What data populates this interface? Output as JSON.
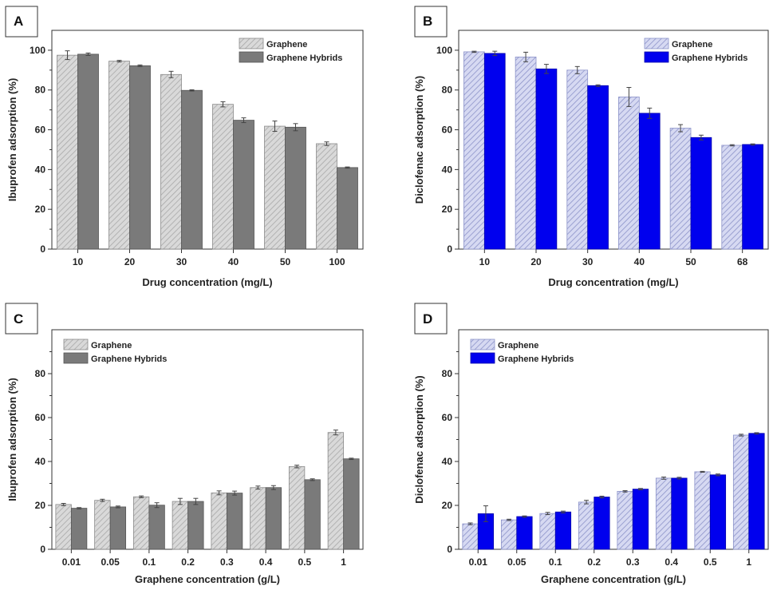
{
  "colors": {
    "graphene_fill": "#d9d9d9",
    "graphene_hatch": "#a8a8a8",
    "gray_hybrid": "#7a7a7a",
    "blue_light_fill": "#d6d9f2",
    "blue_hatch": "#8c93c9",
    "blue_hybrid": "#0000ee"
  },
  "chart_data": [
    {
      "panel": "A",
      "type": "bar",
      "categories": [
        "10",
        "20",
        "30",
        "40",
        "50",
        "100"
      ],
      "series": [
        {
          "name": "Graphene",
          "values": [
            97.5,
            94.5,
            87.8,
            72.8,
            61.8,
            53.0
          ],
          "errors": [
            2.2,
            0.4,
            1.6,
            1.3,
            2.6,
            0.9
          ]
        },
        {
          "name": "Graphene Hybrids",
          "values": [
            98.0,
            92.2,
            79.8,
            64.8,
            61.3,
            41.0
          ],
          "errors": [
            0.6,
            0.4,
            0.3,
            1.2,
            1.8,
            0.3
          ]
        }
      ],
      "xlabel": "Drug concentration (mg/L)",
      "ylabel": "Ibuprofen adsorption (%)",
      "yticks": [
        0,
        20,
        40,
        60,
        80,
        100
      ],
      "ylim": [
        0,
        110
      ],
      "legend": "top-right",
      "style": "gray"
    },
    {
      "panel": "B",
      "type": "bar",
      "categories": [
        "10",
        "20",
        "30",
        "40",
        "50",
        "68"
      ],
      "series": [
        {
          "name": "Graphene",
          "values": [
            99.2,
            96.6,
            90.0,
            76.5,
            60.8,
            52.2
          ],
          "errors": [
            0.3,
            2.4,
            1.8,
            4.8,
            1.8,
            0.3
          ]
        },
        {
          "name": "Graphene Hybrids",
          "values": [
            98.4,
            90.6,
            82.2,
            68.3,
            56.1,
            52.6
          ],
          "errors": [
            1.1,
            2.3,
            0.4,
            2.6,
            1.2,
            0.3
          ]
        }
      ],
      "xlabel": "Drug concentration (mg/L)",
      "ylabel": "Diclofenac adsorption (%)",
      "yticks": [
        0,
        20,
        40,
        60,
        80,
        100
      ],
      "ylim": [
        0,
        110
      ],
      "legend": "top-right",
      "style": "blue"
    },
    {
      "panel": "C",
      "type": "bar",
      "categories": [
        "0.01",
        "0.05",
        "0.1",
        "0.2",
        "0.3",
        "0.4",
        "0.5",
        "1"
      ],
      "series": [
        {
          "name": "Graphene",
          "values": [
            20.4,
            22.3,
            23.9,
            21.8,
            25.7,
            28.1,
            37.7,
            53.2
          ],
          "errors": [
            0.5,
            0.5,
            0.4,
            1.4,
            0.9,
            0.7,
            0.6,
            1.1
          ]
        },
        {
          "name": "Graphene Hybrids",
          "values": [
            18.7,
            19.3,
            20.1,
            21.8,
            25.6,
            28.1,
            31.7,
            41.2
          ],
          "errors": [
            0.3,
            0.4,
            1.1,
            1.4,
            0.9,
            0.9,
            0.4,
            0.3
          ]
        }
      ],
      "xlabel": "Graphene concentration (g/L)",
      "ylabel": "Ibuprofen adsorption (%)",
      "yticks": [
        0,
        20,
        40,
        60,
        80
      ],
      "ylim": [
        0,
        100
      ],
      "legend": "top-left",
      "style": "gray"
    },
    {
      "panel": "D",
      "type": "bar",
      "categories": [
        "0.01",
        "0.05",
        "0.1",
        "0.2",
        "0.3",
        "0.4",
        "0.5",
        "1"
      ],
      "series": [
        {
          "name": "Graphene",
          "values": [
            11.6,
            13.4,
            16.3,
            21.5,
            26.4,
            32.4,
            35.3,
            52.0
          ],
          "errors": [
            0.4,
            0.3,
            0.5,
            0.8,
            0.3,
            0.5,
            0.2,
            0.4
          ]
        },
        {
          "name": "Graphene Hybrids",
          "values": [
            16.2,
            14.9,
            17.0,
            23.8,
            27.4,
            32.4,
            33.9,
            52.8
          ],
          "errors": [
            3.6,
            0.3,
            0.4,
            0.4,
            0.3,
            0.4,
            0.4,
            0.3
          ]
        }
      ],
      "xlabel": "Graphene concentration (g/L)",
      "ylabel": "Diclofenac adsorption (%)",
      "yticks": [
        0,
        20,
        40,
        60,
        80
      ],
      "ylim": [
        0,
        100
      ],
      "legend": "top-left",
      "style": "blue"
    }
  ]
}
